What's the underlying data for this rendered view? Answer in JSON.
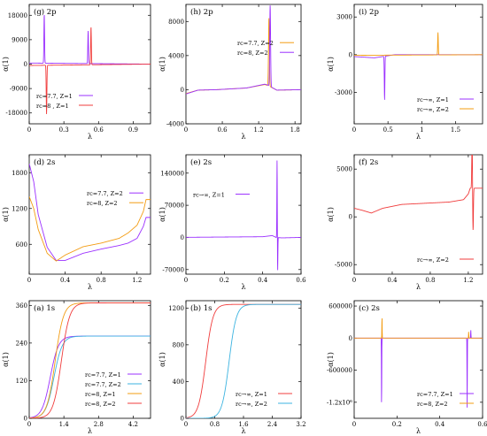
{
  "chart_data": [
    {
      "id": "g",
      "type": "line",
      "title": "(g) 2p",
      "xlabel": "λ",
      "ylabel": "α(1)",
      "xlim": [
        0,
        1.05
      ],
      "ylim": [
        -22000,
        22000
      ],
      "xticks": [
        0,
        0.3,
        0.6,
        0.9
      ],
      "xtick_labels": [
        "0",
        "0.3",
        "0.6",
        "0.9"
      ],
      "yticks": [
        -18000,
        -9000,
        0,
        9000,
        18000
      ],
      "ytick_labels": [
        "-18000",
        "-9000",
        "0",
        "9000",
        "18000"
      ],
      "legend": "bottom-left",
      "series": [
        {
          "name": "rc=7.7, Z=1",
          "color": "#9b30ff",
          "baseline": [
            [
              0,
              400
            ],
            [
              1.05,
              0
            ]
          ],
          "poles": [
            {
              "x": 0.13,
              "h": 18000,
              "sign": 1,
              "w": 0.004
            },
            {
              "x": 0.51,
              "h": 12000,
              "sign": 1,
              "w": 0.004
            }
          ]
        },
        {
          "name": "rc=8  , Z=1",
          "color": "#f03c3c",
          "baseline": [
            [
              0,
              -500
            ],
            [
              1.05,
              0
            ]
          ],
          "poles": [
            {
              "x": 0.15,
              "h": 18000,
              "sign": -1,
              "w": 0.004
            },
            {
              "x": 0.535,
              "h": 14000,
              "sign": 1,
              "w": 0.004
            }
          ]
        }
      ]
    },
    {
      "id": "h",
      "type": "line",
      "title": "(h) 2p",
      "xlabel": "λ",
      "ylabel": "α(1)",
      "xlim": [
        0,
        1.9
      ],
      "ylim": [
        -4000,
        10000
      ],
      "xticks": [
        0,
        0.6,
        1.2,
        1.8
      ],
      "xtick_labels": [
        "0",
        "0.6",
        "1.2",
        "1.8"
      ],
      "yticks": [
        -4000,
        0,
        4000,
        8000
      ],
      "ytick_labels": [
        "-4000",
        "0",
        "4000",
        "8000"
      ],
      "legend": "top-right",
      "series": [
        {
          "name": "rc=7.7, Z=2",
          "color": "#f39c12",
          "baseline": [
            [
              0,
              -450
            ],
            [
              0.2,
              -50
            ],
            [
              0.5,
              0
            ],
            [
              1.0,
              200
            ],
            [
              1.3,
              600
            ],
            [
              1.35,
              500
            ],
            [
              1.5,
              -50
            ],
            [
              1.9,
              0
            ]
          ],
          "poles": [
            {
              "x": 1.37,
              "h": 8000,
              "sign": 1,
              "w": 0.01
            }
          ]
        },
        {
          "name": "rc=8, Z=2",
          "color": "#9b30ff",
          "baseline": [
            [
              0,
              -500
            ],
            [
              0.2,
              -50
            ],
            [
              0.5,
              0
            ],
            [
              1.0,
              200
            ],
            [
              1.3,
              650
            ],
            [
              1.35,
              550
            ],
            [
              1.5,
              -50
            ],
            [
              1.9,
              0
            ]
          ],
          "poles": [
            {
              "x": 1.39,
              "h": 9500,
              "sign": 1,
              "w": 0.01
            }
          ]
        }
      ]
    },
    {
      "id": "i",
      "type": "line",
      "title": "(i) 2p",
      "xlabel": "λ",
      "ylabel": "α(1)",
      "xlim": [
        0,
        1.9
      ],
      "ylim": [
        -5500,
        4000
      ],
      "xticks": [
        0,
        0.5,
        1.0,
        1.5
      ],
      "xtick_labels": [
        "0",
        "0.5",
        "1",
        "1.5"
      ],
      "yticks": [
        -3000,
        0,
        3000
      ],
      "ytick_labels": [
        "-3000",
        "0",
        "3000"
      ],
      "legend": "bottom-right",
      "series": [
        {
          "name": "rc→∞, Z=1",
          "color": "#9b30ff",
          "baseline": [
            [
              0,
              -150
            ],
            [
              0.3,
              -250
            ],
            [
              0.6,
              0
            ],
            [
              1.9,
              0
            ]
          ],
          "poles": [
            {
              "x": 0.45,
              "h": 3500,
              "sign": -1,
              "w": 0.006
            }
          ]
        },
        {
          "name": "rc→∞, Z=2",
          "color": "#f39c12",
          "baseline": [
            [
              0,
              -50
            ],
            [
              1.9,
              0
            ]
          ],
          "poles": [
            {
              "x": 1.24,
              "h": 1800,
              "sign": 1,
              "w": 0.006
            }
          ]
        }
      ]
    },
    {
      "id": "d",
      "type": "line",
      "title": "(d) 2s",
      "xlabel": "λ",
      "ylabel": "α(1)",
      "xlim": [
        0,
        1.35
      ],
      "ylim": [
        100,
        2100
      ],
      "xticks": [
        0,
        0.4,
        0.8,
        1.2
      ],
      "xtick_labels": [
        "0",
        "0.4",
        "0.8",
        "1.2"
      ],
      "yticks": [
        600,
        1200,
        1800
      ],
      "ytick_labels": [
        "600",
        "1200",
        "1800"
      ],
      "legend": "top-right",
      "series": [
        {
          "name": "rc=7.7, Z=2",
          "color": "#9b30ff",
          "baseline": [
            [
              0,
              1950
            ],
            [
              0.05,
              1650
            ],
            [
              0.1,
              1100
            ],
            [
              0.2,
              550
            ],
            [
              0.3,
              330
            ],
            [
              0.4,
              330
            ],
            [
              0.6,
              450
            ],
            [
              0.8,
              520
            ],
            [
              1.0,
              580
            ],
            [
              1.1,
              620
            ],
            [
              1.2,
              700
            ],
            [
              1.27,
              900
            ],
            [
              1.3,
              1050
            ]
          ],
          "poles": []
        },
        {
          "name": "rc=8, Z=2",
          "color": "#f39c12",
          "baseline": [
            [
              0,
              1400
            ],
            [
              0.05,
              1200
            ],
            [
              0.1,
              850
            ],
            [
              0.2,
              450
            ],
            [
              0.3,
              320
            ],
            [
              0.4,
              420
            ],
            [
              0.6,
              560
            ],
            [
              0.8,
              620
            ],
            [
              1.0,
              700
            ],
            [
              1.1,
              790
            ],
            [
              1.2,
              920
            ],
            [
              1.27,
              1150
            ],
            [
              1.3,
              1350
            ]
          ],
          "poles": []
        }
      ]
    },
    {
      "id": "e",
      "type": "line",
      "title": "(e) 2s",
      "xlabel": "λ",
      "ylabel": "α(1)",
      "xlim": [
        0,
        0.6
      ],
      "ylim": [
        -80000,
        180000
      ],
      "xticks": [
        0,
        0.2,
        0.4,
        0.6
      ],
      "xtick_labels": [
        "0",
        "0.2",
        "0.4",
        "0.6"
      ],
      "yticks": [
        -70000,
        0,
        70000,
        140000
      ],
      "ytick_labels": [
        "-70000",
        "0",
        "70000",
        "140000"
      ],
      "legend": "top-left",
      "series": [
        {
          "name": "rc→∞, Z=1",
          "color": "#9b30ff",
          "baseline": [
            [
              0,
              200
            ],
            [
              0.4,
              1500
            ],
            [
              0.45,
              4000
            ],
            [
              0.47,
              0
            ],
            [
              0.5,
              -1000
            ],
            [
              0.6,
              0
            ]
          ],
          "poles": [
            {
              "x": 0.475,
              "h": 170000,
              "sign": 1,
              "w": 0.0015
            },
            {
              "x": 0.478,
              "h": 75000,
              "sign": -1,
              "w": 0.0015
            }
          ]
        }
      ]
    },
    {
      "id": "f",
      "type": "line",
      "title": "(f) 2s",
      "xlabel": "λ",
      "ylabel": "α(1)",
      "xlim": [
        0,
        1.35
      ],
      "ylim": [
        -6000,
        6500
      ],
      "xticks": [
        0,
        0.4,
        0.8,
        1.2
      ],
      "xtick_labels": [
        "0",
        "0.4",
        "0.8",
        "1.2"
      ],
      "yticks": [
        -5000,
        0,
        5000
      ],
      "ytick_labels": [
        "-5000",
        "0",
        "5000"
      ],
      "legend": "bottom-right",
      "series": [
        {
          "name": "rc→∞, Z=2",
          "color": "#f03c3c",
          "baseline": [
            [
              0,
              900
            ],
            [
              0.08,
              700
            ],
            [
              0.18,
              400
            ],
            [
              0.3,
              900
            ],
            [
              0.5,
              1300
            ],
            [
              0.8,
              1450
            ],
            [
              1.0,
              1550
            ],
            [
              1.15,
              1800
            ],
            [
              1.2,
              2400
            ],
            [
              1.22,
              3000
            ]
          ],
          "poles": [
            {
              "x": 1.24,
              "h": 5000,
              "sign": 1,
              "w": 0.005
            },
            {
              "x": 1.25,
              "h": 4500,
              "sign": -1,
              "w": 0.005
            }
          ]
        }
      ]
    },
    {
      "id": "a",
      "type": "line",
      "title": "(a) 1s",
      "xlabel": "λ",
      "ylabel": "α(1)",
      "xlim": [
        0,
        4.9
      ],
      "ylim": [
        0,
        375
      ],
      "xticks": [
        0,
        1.4,
        2.8,
        4.2
      ],
      "xtick_labels": [
        "0",
        "1.4",
        "2.8",
        "4.2"
      ],
      "yticks": [
        0,
        120,
        240,
        360
      ],
      "ytick_labels": [
        "0",
        "120",
        "240",
        "360"
      ],
      "legend": "bottom-right",
      "series": [
        {
          "name": "rc=7.7, Z=1",
          "color": "#9b30ff",
          "sigmoid": {
            "top": 262,
            "x0": 0.85,
            "k": 6.0
          }
        },
        {
          "name": "rc=7.7, Z=2",
          "color": "#3bb3e0",
          "sigmoid": {
            "top": 262,
            "x0": 1.0,
            "k": 6.0
          }
        },
        {
          "name": "rc=8, Z=1",
          "color": "#f39c12",
          "sigmoid": {
            "top": 368,
            "x0": 1.05,
            "k": 6.0
          }
        },
        {
          "name": "rc=8, Z=2",
          "color": "#f03c3c",
          "sigmoid": {
            "top": 368,
            "x0": 1.3,
            "k": 6.0
          }
        }
      ]
    },
    {
      "id": "b",
      "type": "line",
      "title": "(b) 1s",
      "xlabel": "λ",
      "ylabel": "α(1)",
      "xlim": [
        0,
        3.2
      ],
      "ylim": [
        0,
        1280
      ],
      "xticks": [
        0,
        0.8,
        1.6,
        2.4,
        3.2
      ],
      "xtick_labels": [
        "0",
        "0.8",
        "1.6",
        "2.4",
        "3.2"
      ],
      "yticks": [
        0,
        400,
        800,
        1200
      ],
      "ytick_labels": [
        "0",
        "400",
        "800",
        "1200"
      ],
      "legend": "bottom-right",
      "series": [
        {
          "name": "rc→∞, Z=1",
          "color": "#f03c3c",
          "sigmoid": {
            "top": 1240,
            "x0": 0.55,
            "k": 10.0
          }
        },
        {
          "name": "rc→∞, Z=2",
          "color": "#3bb3e0",
          "sigmoid": {
            "top": 1240,
            "x0": 1.2,
            "k": 10.0
          }
        }
      ]
    },
    {
      "id": "c",
      "type": "line",
      "title": "(c) 2s",
      "xlabel": "λ",
      "ylabel": "α(1)",
      "xlim": [
        0,
        0.6
      ],
      "ylim": [
        -1500000,
        700000
      ],
      "xticks": [
        0,
        0.2,
        0.4,
        0.6
      ],
      "xtick_labels": [
        "0",
        "0.2",
        "0.4",
        "0.6"
      ],
      "yticks": [
        -1200000,
        -600000,
        0,
        600000
      ],
      "ytick_labels": [
        "-1.2x10⁶",
        "-600000",
        "0",
        "600000"
      ],
      "legend": "bottom-right",
      "series": [
        {
          "name": "rc=7.7, Z=1",
          "color": "#9b30ff",
          "baseline": [
            [
              0,
              0
            ],
            [
              0.6,
              0
            ]
          ],
          "poles": [
            {
              "x": 0.128,
              "h": 1300000,
              "sign": -1,
              "w": 0.001
            },
            {
              "x": 0.528,
              "h": 1300000,
              "sign": -1,
              "w": 0.001
            },
            {
              "x": 0.545,
              "h": 150000,
              "sign": 1,
              "w": 0.001
            }
          ]
        },
        {
          "name": "rc=8, Z=2",
          "color": "#f39c12",
          "baseline": [
            [
              0,
              0
            ],
            [
              0.6,
              0
            ]
          ],
          "poles": [
            {
              "x": 0.13,
              "h": 400000,
              "sign": 1,
              "w": 0.001
            },
            {
              "x": 0.535,
              "h": 120000,
              "sign": 1,
              "w": 0.001
            }
          ]
        }
      ]
    }
  ]
}
